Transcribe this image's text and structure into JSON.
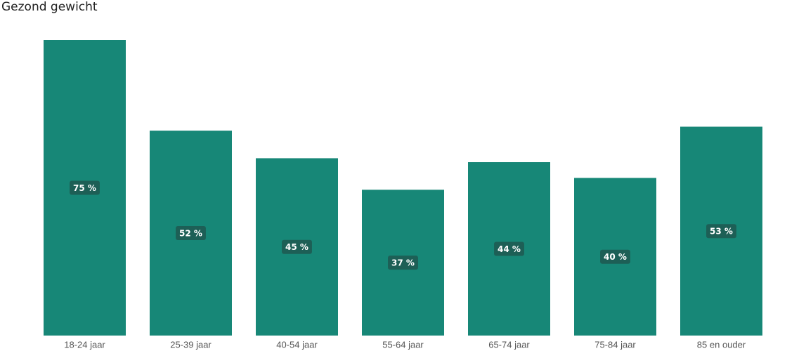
{
  "chart_data": {
    "type": "bar",
    "title": "Gezond gewicht",
    "categories": [
      "18-24 jaar",
      "25-39 jaar",
      "40-54 jaar",
      "55-64 jaar",
      "65-74 jaar",
      "75-84 jaar",
      "85 en ouder"
    ],
    "values": [
      75,
      52,
      45,
      37,
      44,
      40,
      53
    ],
    "value_labels": [
      "75 %",
      "52 %",
      "45 %",
      "37 %",
      "44 %",
      "40 %",
      "53 %"
    ],
    "color": "#178777",
    "ylim": [
      0,
      75
    ]
  }
}
